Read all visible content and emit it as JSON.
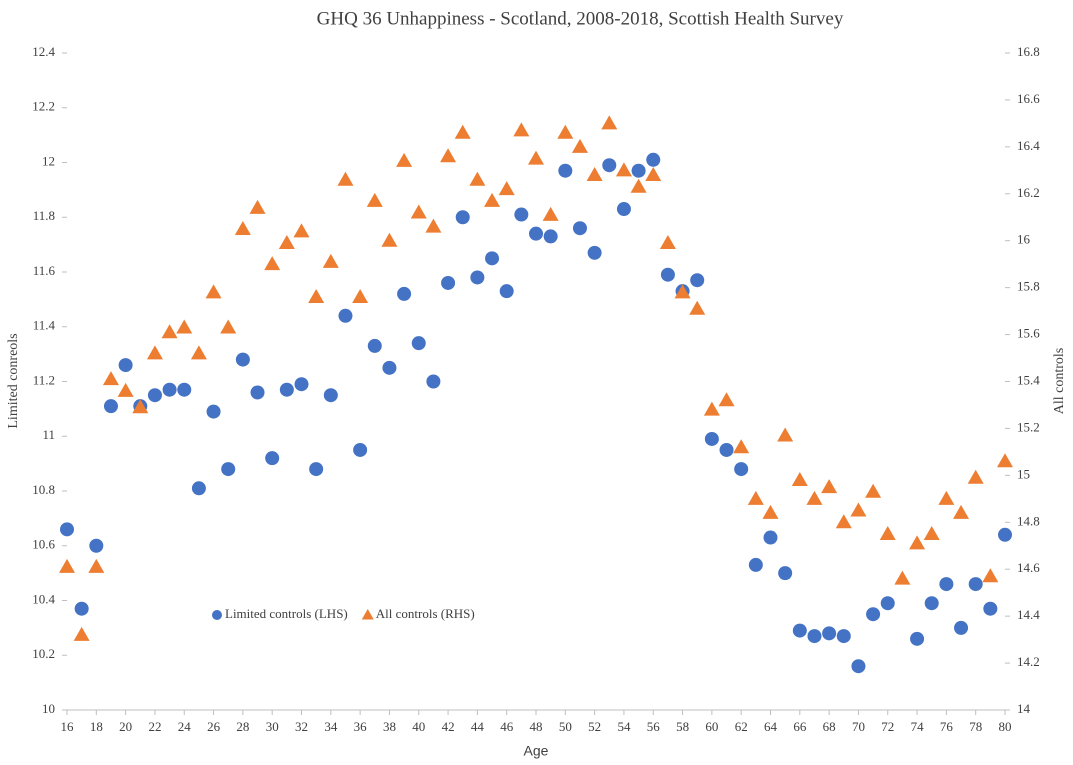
{
  "chart_data": {
    "type": "scatter",
    "title": "GHQ 36 Unhappiness - Scotland, 2008-2018, Scottish Health Survey",
    "xlabel": "Age",
    "ylabel": "Limited conreols",
    "y2label": "All controls",
    "x": [
      16,
      17,
      18,
      19,
      20,
      21,
      22,
      23,
      24,
      25,
      26,
      27,
      28,
      29,
      30,
      31,
      32,
      33,
      34,
      35,
      36,
      37,
      38,
      39,
      40,
      41,
      42,
      43,
      44,
      45,
      46,
      47,
      48,
      49,
      50,
      51,
      52,
      53,
      54,
      55,
      56,
      57,
      58,
      59,
      60,
      61,
      62,
      63,
      64,
      65,
      66,
      67,
      68,
      69,
      70,
      71,
      72,
      73,
      74,
      75,
      76,
      77,
      78,
      79,
      80
    ],
    "series": [
      {
        "name": "Limited controls (LHS)",
        "color": "#4472c4",
        "marker": "circle",
        "axis": "y",
        "values": [
          10.66,
          10.37,
          10.6,
          11.11,
          11.26,
          11.11,
          11.15,
          11.17,
          11.17,
          10.81,
          11.09,
          10.88,
          11.28,
          11.16,
          10.92,
          11.17,
          11.19,
          10.88,
          11.15,
          11.44,
          10.95,
          11.33,
          11.25,
          11.52,
          11.34,
          11.2,
          11.56,
          11.8,
          11.58,
          11.65,
          11.53,
          11.81,
          11.74,
          11.73,
          11.97,
          11.76,
          11.67,
          11.99,
          11.83,
          11.97,
          12.01,
          11.59,
          11.53,
          11.57,
          10.99,
          10.95,
          10.88,
          10.53,
          10.63,
          10.5,
          10.29,
          10.27,
          10.28,
          10.27,
          10.16,
          10.35,
          10.39,
          null,
          10.26,
          10.39,
          10.46,
          10.3,
          10.46,
          10.37,
          10.64
        ]
      },
      {
        "name": "All controls (RHS)",
        "color": "#ed7d31",
        "marker": "triangle",
        "axis": "y2",
        "values": [
          14.61,
          14.32,
          14.61,
          15.41,
          15.36,
          15.29,
          15.52,
          15.61,
          15.63,
          15.52,
          15.78,
          15.63,
          16.05,
          16.14,
          15.9,
          15.99,
          16.04,
          15.76,
          15.91,
          16.26,
          15.76,
          16.17,
          16.0,
          16.34,
          16.12,
          16.06,
          16.36,
          16.46,
          16.26,
          16.17,
          16.22,
          16.47,
          16.35,
          16.11,
          16.46,
          16.4,
          16.28,
          16.5,
          16.3,
          16.23,
          16.28,
          15.99,
          15.78,
          15.71,
          15.28,
          15.32,
          15.12,
          14.9,
          14.84,
          15.17,
          14.98,
          14.9,
          14.95,
          14.8,
          14.85,
          14.93,
          14.75,
          14.56,
          14.71,
          14.75,
          14.9,
          14.84,
          14.99,
          14.57,
          15.06
        ]
      }
    ],
    "xlim": [
      16,
      80
    ],
    "xticks": [
      16,
      18,
      20,
      22,
      24,
      26,
      28,
      30,
      32,
      34,
      36,
      38,
      40,
      42,
      44,
      46,
      48,
      50,
      52,
      54,
      56,
      58,
      60,
      62,
      64,
      66,
      68,
      70,
      72,
      74,
      76,
      78,
      80
    ],
    "ylim": [
      10,
      12.4
    ],
    "yticks": [
      10,
      10.2,
      10.4,
      10.6,
      10.8,
      11,
      11.2,
      11.4,
      11.6,
      11.8,
      12,
      12.2,
      12.4
    ],
    "y2lim": [
      14,
      16.8
    ],
    "y2ticks": [
      14,
      14.2,
      14.4,
      14.6,
      14.8,
      15,
      15.2,
      15.4,
      15.6,
      15.8,
      16,
      16.2,
      16.4,
      16.6,
      16.8
    ],
    "grid": false
  }
}
